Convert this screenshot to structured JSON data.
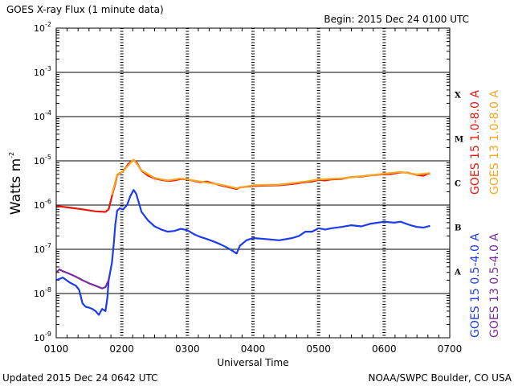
{
  "header": {
    "title": "GOES X-ray Flux (1 minute data)",
    "begin": "Begin: 2015 Dec 24 0100 UTC"
  },
  "footer": {
    "updated": "Updated 2015 Dec 24 0642 UTC",
    "credit": "NOAA/SWPC Boulder, CO USA"
  },
  "flare_classes": [
    "X",
    "M",
    "C",
    "B",
    "A"
  ],
  "legend": [
    {
      "label": "GOES 15 1.0-8.0 A",
      "color": "#e8170a"
    },
    {
      "label": "GOES 13 1.0-8.0 A",
      "color": "#f5a623"
    },
    {
      "label": "GOES 15 0.5-4.0 A",
      "color": "#1c3bf0"
    },
    {
      "label": "GOES 13 0.5-4.0 A",
      "color": "#7a2c9e"
    }
  ],
  "chart_data": {
    "type": "line",
    "title": "GOES X-ray Flux (1 minute data)",
    "xlabel": "Universal Time",
    "ylabel": "Watts m",
    "ylabel_sup": "-2",
    "x_unit": "UTC hours",
    "xlim": [
      1.0,
      7.0
    ],
    "x_ticks": [
      {
        "value": 1,
        "label": "0100"
      },
      {
        "value": 2,
        "label": "0200"
      },
      {
        "value": 3,
        "label": "0300"
      },
      {
        "value": 4,
        "label": "0400"
      },
      {
        "value": 5,
        "label": "0500"
      },
      {
        "value": 6,
        "label": "0600"
      },
      {
        "value": 7,
        "label": "0700"
      }
    ],
    "y_scale": "log",
    "ylim": [
      1e-09,
      0.01
    ],
    "y_ticks": [
      {
        "value": 0.01,
        "base": "10",
        "exp": "-2"
      },
      {
        "value": 0.001,
        "base": "10",
        "exp": "-3"
      },
      {
        "value": 0.0001,
        "base": "10",
        "exp": "-4"
      },
      {
        "value": 1e-05,
        "base": "10",
        "exp": "-5"
      },
      {
        "value": 1e-06,
        "base": "10",
        "exp": "-6"
      },
      {
        "value": 1e-07,
        "base": "10",
        "exp": "-7"
      },
      {
        "value": 1e-08,
        "base": "10",
        "exp": "-8"
      },
      {
        "value": 1e-09,
        "base": "10",
        "exp": "-9"
      }
    ],
    "grid": true,
    "series": [
      {
        "name": "GOES 15 1.0-8.0 A",
        "color": "#e8170a",
        "points": [
          [
            1.0,
            9.5e-07
          ],
          [
            1.2,
            8.8e-07
          ],
          [
            1.4,
            8e-07
          ],
          [
            1.6,
            7.2e-07
          ],
          [
            1.75,
            7e-07
          ],
          [
            1.8,
            8e-07
          ],
          [
            1.85,
            1.6e-06
          ],
          [
            1.9,
            3e-06
          ],
          [
            1.93,
            4.8e-06
          ],
          [
            1.97,
            5.2e-06
          ],
          [
            2.02,
            5.8e-06
          ],
          [
            2.1,
            8.5e-06
          ],
          [
            2.18,
            1.05e-05
          ],
          [
            2.23,
            9e-06
          ],
          [
            2.3,
            6e-06
          ],
          [
            2.4,
            4.6e-06
          ],
          [
            2.5,
            4e-06
          ],
          [
            2.6,
            3.7e-06
          ],
          [
            2.7,
            3.5e-06
          ],
          [
            2.8,
            3.6e-06
          ],
          [
            2.9,
            3.9e-06
          ],
          [
            3.0,
            3.8e-06
          ],
          [
            3.1,
            3.5e-06
          ],
          [
            3.2,
            3.3e-06
          ],
          [
            3.3,
            3.4e-06
          ],
          [
            3.4,
            3.1e-06
          ],
          [
            3.5,
            2.8e-06
          ],
          [
            3.6,
            2.6e-06
          ],
          [
            3.7,
            2.4e-06
          ],
          [
            3.75,
            2.3e-06
          ],
          [
            3.8,
            2.5e-06
          ],
          [
            3.9,
            2.6e-06
          ],
          [
            4.0,
            2.7e-06
          ],
          [
            4.2,
            2.75e-06
          ],
          [
            4.4,
            2.8e-06
          ],
          [
            4.6,
            3e-06
          ],
          [
            4.8,
            3.3e-06
          ],
          [
            4.9,
            3.4e-06
          ],
          [
            5.0,
            3.7e-06
          ],
          [
            5.1,
            3.6e-06
          ],
          [
            5.2,
            3.8e-06
          ],
          [
            5.35,
            3.9e-06
          ],
          [
            5.5,
            4.3e-06
          ],
          [
            5.65,
            4.4e-06
          ],
          [
            5.8,
            4.7e-06
          ],
          [
            6.0,
            5e-06
          ],
          [
            6.1,
            5e-06
          ],
          [
            6.25,
            5.5e-06
          ],
          [
            6.35,
            5.4e-06
          ],
          [
            6.5,
            4.8e-06
          ],
          [
            6.6,
            4.6e-06
          ],
          [
            6.65,
            5e-06
          ],
          [
            6.7,
            5.2e-06
          ]
        ]
      },
      {
        "name": "GOES 13 1.0-8.0 A",
        "color": "#f5a623",
        "points": [
          [
            1.85,
            1.7e-06
          ],
          [
            1.93,
            4.9e-06
          ],
          [
            2.02,
            5.9e-06
          ],
          [
            2.18,
            1.07e-05
          ],
          [
            2.3,
            6.1e-06
          ],
          [
            2.5,
            4.1e-06
          ],
          [
            2.7,
            3.6e-06
          ],
          [
            2.9,
            4e-06
          ],
          [
            3.2,
            3.4e-06
          ],
          [
            3.5,
            2.9e-06
          ],
          [
            3.75,
            2.4e-06
          ],
          [
            4.0,
            2.8e-06
          ],
          [
            4.4,
            2.9e-06
          ],
          [
            4.8,
            3.4e-06
          ],
          [
            5.0,
            3.8e-06
          ],
          [
            5.35,
            4e-06
          ],
          [
            5.65,
            4.5e-06
          ],
          [
            6.0,
            5.1e-06
          ],
          [
            6.25,
            5.6e-06
          ],
          [
            6.5,
            4.9e-06
          ],
          [
            6.7,
            5.3e-06
          ]
        ]
      },
      {
        "name": "GOES 15 0.5-4.0 A",
        "color": "#1c3bf0",
        "points": [
          [
            1.0,
            2e-08
          ],
          [
            1.1,
            2.3e-08
          ],
          [
            1.2,
            1.8e-08
          ],
          [
            1.3,
            1.5e-08
          ],
          [
            1.35,
            1.2e-08
          ],
          [
            1.4,
            6e-09
          ],
          [
            1.45,
            5e-09
          ],
          [
            1.5,
            4.8e-09
          ],
          [
            1.55,
            4.5e-09
          ],
          [
            1.6,
            4e-09
          ],
          [
            1.65,
            3.3e-09
          ],
          [
            1.7,
            4.5e-09
          ],
          [
            1.75,
            4e-09
          ],
          [
            1.78,
            8e-09
          ],
          [
            1.8,
            2e-08
          ],
          [
            1.85,
            5e-08
          ],
          [
            1.88,
            1.5e-07
          ],
          [
            1.9,
            3.5e-07
          ],
          [
            1.93,
            7.5e-07
          ],
          [
            1.97,
            8.5e-07
          ],
          [
            2.02,
            8e-07
          ],
          [
            2.08,
            1e-06
          ],
          [
            2.13,
            1.6e-06
          ],
          [
            2.18,
            2.2e-06
          ],
          [
            2.22,
            1.8e-06
          ],
          [
            2.3,
            7e-07
          ],
          [
            2.4,
            4.5e-07
          ],
          [
            2.5,
            3.3e-07
          ],
          [
            2.6,
            2.8e-07
          ],
          [
            2.7,
            2.5e-07
          ],
          [
            2.8,
            2.6e-07
          ],
          [
            2.9,
            2.9e-07
          ],
          [
            3.0,
            2.7e-07
          ],
          [
            3.1,
            2.2e-07
          ],
          [
            3.2,
            1.9e-07
          ],
          [
            3.3,
            1.7e-07
          ],
          [
            3.4,
            1.5e-07
          ],
          [
            3.5,
            1.3e-07
          ],
          [
            3.6,
            1.1e-07
          ],
          [
            3.7,
            9e-08
          ],
          [
            3.75,
            8e-08
          ],
          [
            3.8,
            1.2e-07
          ],
          [
            3.9,
            1.6e-07
          ],
          [
            4.0,
            1.8e-07
          ],
          [
            4.2,
            1.7e-07
          ],
          [
            4.4,
            1.6e-07
          ],
          [
            4.6,
            1.8e-07
          ],
          [
            4.7,
            2e-07
          ],
          [
            4.8,
            2.5e-07
          ],
          [
            4.9,
            2.5e-07
          ],
          [
            5.0,
            3e-07
          ],
          [
            5.1,
            2.8e-07
          ],
          [
            5.2,
            3e-07
          ],
          [
            5.35,
            3.2e-07
          ],
          [
            5.5,
            3.5e-07
          ],
          [
            5.65,
            3.3e-07
          ],
          [
            5.8,
            3.8e-07
          ],
          [
            6.0,
            4.2e-07
          ],
          [
            6.15,
            4e-07
          ],
          [
            6.25,
            4.2e-07
          ],
          [
            6.4,
            3.5e-07
          ],
          [
            6.5,
            3.2e-07
          ],
          [
            6.6,
            3.1e-07
          ],
          [
            6.7,
            3.4e-07
          ]
        ]
      },
      {
        "name": "GOES 13 0.5-4.0 A",
        "color": "#7a2c9e",
        "points": [
          [
            1.0,
            3e-08
          ],
          [
            1.05,
            3.5e-08
          ],
          [
            1.1,
            3.2e-08
          ],
          [
            1.2,
            2.8e-08
          ],
          [
            1.3,
            2.4e-08
          ],
          [
            1.4,
            2e-08
          ],
          [
            1.5,
            1.7e-08
          ],
          [
            1.6,
            1.5e-08
          ],
          [
            1.7,
            1.3e-08
          ],
          [
            1.75,
            1.4e-08
          ],
          [
            1.8,
            2e-08
          ]
        ]
      }
    ]
  }
}
